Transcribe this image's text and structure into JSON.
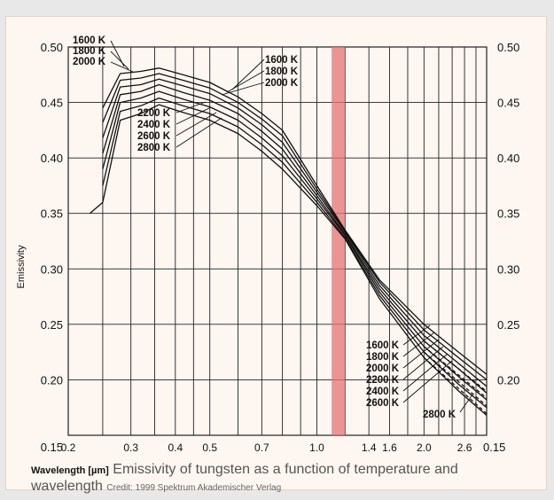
{
  "chart_data": {
    "type": "line",
    "title": "",
    "xlabel": "Wavelength [µm]",
    "ylabel": "Emissivity",
    "x_scale": "log",
    "xlim": [
      0.2,
      3.0
    ],
    "ylim": [
      0.15,
      0.5
    ],
    "x_ticks": [
      "0.2",
      "0.3",
      "0.4",
      "0.5",
      "0.7",
      "1.0",
      "1.4",
      "1.6",
      "2.0",
      "2.6"
    ],
    "x_tick_values": [
      0.2,
      0.3,
      0.4,
      0.5,
      0.7,
      1.0,
      1.4,
      1.6,
      2.0,
      2.6
    ],
    "corner_label": "0.15",
    "right_label": "0.15",
    "y_ticks": [
      "0.50",
      "0.45",
      "0.40",
      "0.35",
      "0.30",
      "0.25",
      "0.20"
    ],
    "y_tick_values": [
      0.5,
      0.45,
      0.4,
      0.35,
      0.3,
      0.25,
      0.2
    ],
    "grid": true,
    "highlight_band": {
      "x_from": 1.1,
      "x_to": 1.2,
      "color": "#e57373"
    },
    "label_groups": {
      "upper_left": [
        "1600 K",
        "1800 K",
        "2000 K"
      ],
      "upper_right": [
        "1600 K",
        "1800 K",
        "2000 K"
      ],
      "middle": [
        "2200 K",
        "2400 K",
        "2600 K",
        "2800 K"
      ],
      "lower_left": [
        "1600 K",
        "1800 K",
        "2000 K",
        "2200 K",
        "2400 K",
        "2600 K"
      ],
      "lower_right": "2800 K"
    },
    "series": [
      {
        "name": "1600 K",
        "x": [
          0.25,
          0.28,
          0.32,
          0.36,
          0.42,
          0.5,
          0.6,
          0.7,
          0.8,
          1.0,
          1.2,
          1.5,
          2.0,
          2.5,
          3.0
        ],
        "y": [
          0.445,
          0.476,
          0.478,
          0.481,
          0.475,
          0.468,
          0.455,
          0.44,
          0.425,
          0.375,
          0.335,
          0.29,
          0.25,
          0.225,
          0.205
        ]
      },
      {
        "name": "1800 K",
        "x": [
          0.25,
          0.28,
          0.32,
          0.36,
          0.42,
          0.5,
          0.6,
          0.7,
          0.8,
          1.0,
          1.2,
          1.5,
          2.0,
          2.5,
          3.0
        ],
        "y": [
          0.432,
          0.47,
          0.472,
          0.476,
          0.47,
          0.463,
          0.45,
          0.435,
          0.42,
          0.372,
          0.334,
          0.288,
          0.245,
          0.22,
          0.2
        ]
      },
      {
        "name": "2000 K",
        "x": [
          0.25,
          0.28,
          0.32,
          0.36,
          0.42,
          0.5,
          0.6,
          0.7,
          0.8,
          1.0,
          1.2,
          1.5,
          2.0,
          2.5,
          3.0
        ],
        "y": [
          0.418,
          0.464,
          0.466,
          0.471,
          0.465,
          0.458,
          0.445,
          0.43,
          0.414,
          0.369,
          0.333,
          0.285,
          0.24,
          0.215,
          0.194
        ]
      },
      {
        "name": "2200 K",
        "x": [
          0.25,
          0.28,
          0.32,
          0.36,
          0.42,
          0.5,
          0.6,
          0.7,
          0.8,
          1.0,
          1.2,
          1.5,
          2.0,
          2.5,
          3.0
        ],
        "y": [
          0.404,
          0.457,
          0.46,
          0.466,
          0.459,
          0.452,
          0.44,
          0.424,
          0.408,
          0.366,
          0.331,
          0.282,
          0.235,
          0.21,
          0.188
        ]
      },
      {
        "name": "2400 K",
        "x": [
          0.25,
          0.28,
          0.32,
          0.36,
          0.42,
          0.5,
          0.6,
          0.7,
          0.8,
          1.0,
          1.2,
          1.5,
          2.0,
          2.5,
          3.0
        ],
        "y": [
          0.39,
          0.45,
          0.454,
          0.46,
          0.453,
          0.446,
          0.434,
          0.418,
          0.402,
          0.363,
          0.33,
          0.279,
          0.23,
          0.203,
          0.182
        ]
      },
      {
        "name": "2600 K",
        "x": [
          0.25,
          0.28,
          0.32,
          0.36,
          0.42,
          0.5,
          0.6,
          0.7,
          0.8,
          1.0,
          1.2,
          1.5,
          2.0,
          2.5,
          3.0
        ],
        "y": [
          0.375,
          0.442,
          0.447,
          0.454,
          0.447,
          0.44,
          0.428,
          0.412,
          0.396,
          0.36,
          0.328,
          0.276,
          0.225,
          0.196,
          0.175
        ]
      },
      {
        "name": "2800 K",
        "x": [
          0.23,
          0.25,
          0.28,
          0.32,
          0.36,
          0.42,
          0.5,
          0.6,
          0.7,
          0.8,
          1.0,
          1.2,
          1.5,
          2.0,
          2.5,
          3.0
        ],
        "y": [
          0.35,
          0.36,
          0.434,
          0.44,
          0.448,
          0.441,
          0.434,
          0.422,
          0.406,
          0.39,
          0.357,
          0.327,
          0.273,
          0.22,
          0.19,
          0.168
        ]
      }
    ]
  },
  "caption": {
    "xlabel": "Wavelength [µm]",
    "text": "Emissivity of tungsten as a function of temperature and wavelength",
    "credit": "Credit: 1999 Spektrum Akademischer Verlag"
  },
  "colors": {
    "line": "#111111",
    "grid": "#222222",
    "band": "#e57373",
    "card_bg": "#fdf6f1"
  }
}
